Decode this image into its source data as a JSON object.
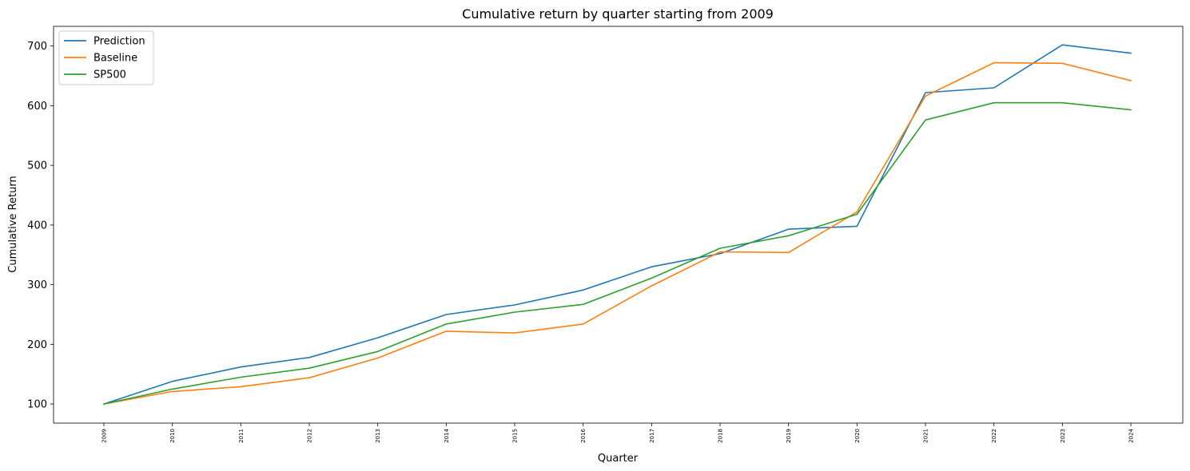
{
  "chart_data": {
    "type": "line",
    "title": "Cumulative return by quarter starting from 2009",
    "xlabel": "Quarter",
    "ylabel": "Cumulative Return",
    "categories": [
      "2009",
      "2010",
      "2011",
      "2012",
      "2013",
      "2014",
      "2015",
      "2016",
      "2017",
      "2018",
      "2019",
      "2020",
      "2021",
      "2022",
      "2023",
      "2024"
    ],
    "yticks": [
      100,
      200,
      300,
      400,
      500,
      600,
      700
    ],
    "ylim": [
      68,
      733
    ],
    "grid": false,
    "legend_position": "top-left",
    "series": [
      {
        "name": "Prediction",
        "color": "#1f77b4",
        "values": [
          100,
          138,
          162,
          178,
          211,
          250,
          266,
          291,
          330,
          352,
          393,
          398,
          622,
          630,
          702,
          688
        ]
      },
      {
        "name": "Baseline",
        "color": "#ff7f0e",
        "values": [
          100,
          121,
          129,
          144,
          177,
          222,
          219,
          234,
          298,
          355,
          354,
          422,
          616,
          672,
          671,
          642
        ]
      },
      {
        "name": "SP500",
        "color": "#2ca02c",
        "values": [
          100,
          125,
          145,
          160,
          188,
          234,
          254,
          267,
          311,
          361,
          382,
          418,
          576,
          605,
          605,
          593
        ]
      }
    ]
  }
}
